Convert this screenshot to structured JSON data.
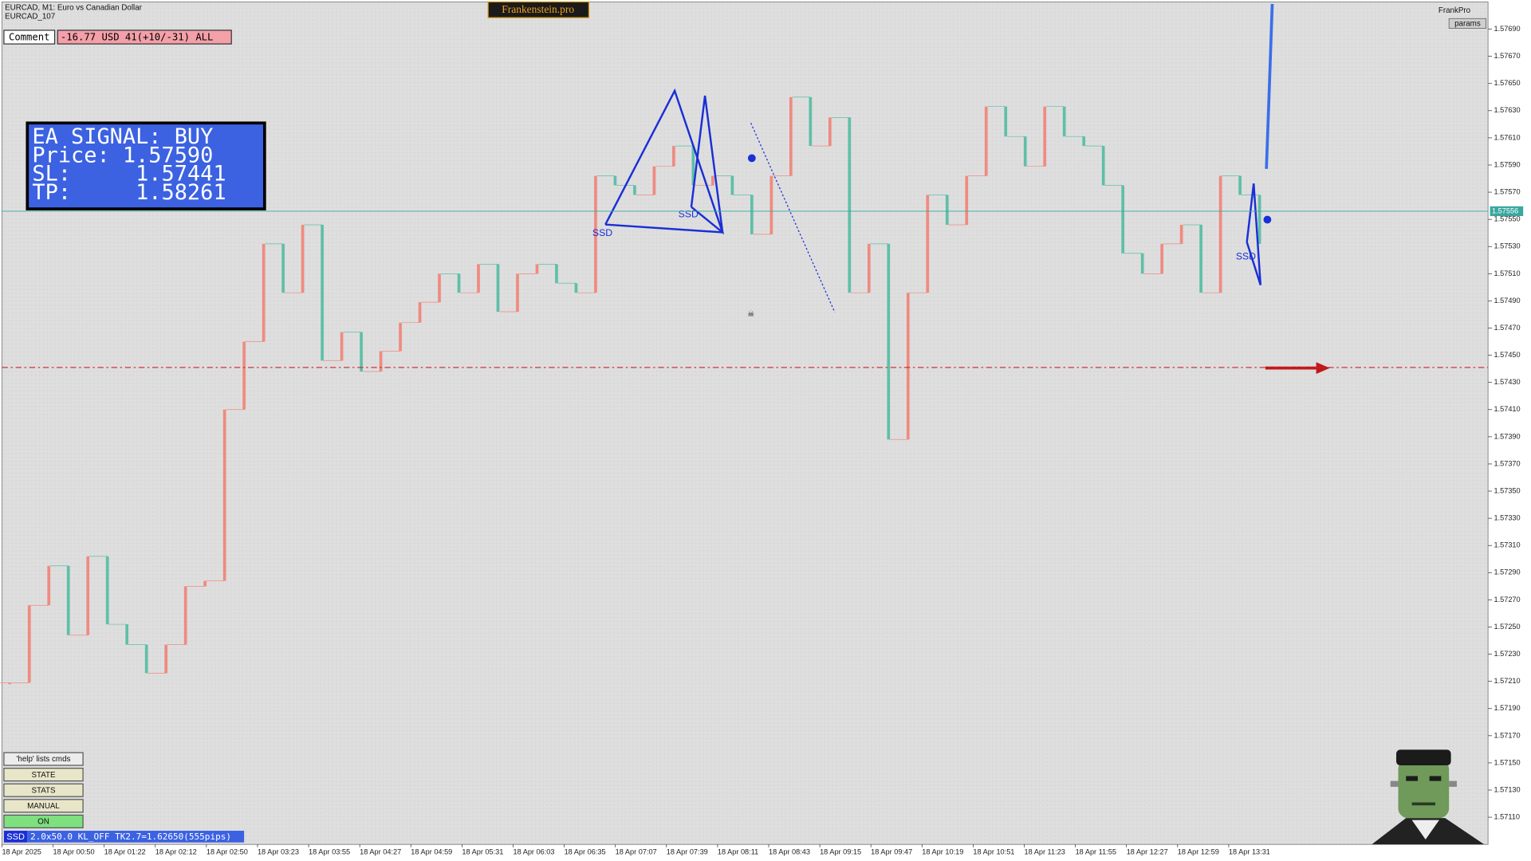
{
  "header": {
    "symbol_line": "EURCAD, M1:  Euro vs Canadian Dollar",
    "magic": "EURCAD_107",
    "brand": "Frankenstein.pro",
    "account": "FrankPro",
    "params": "params"
  },
  "comment": {
    "label": "Comment",
    "text": "-16.77 USD 41(+10/-31) ALL"
  },
  "signal_panel": {
    "lines": [
      "EA SIGNAL: BUY",
      "Price: 1.57590",
      "SL:     1.57441",
      "TP:     1.58261"
    ]
  },
  "buttons": [
    "'help' lists cmds",
    "STATE",
    "STATS",
    "MANUAL",
    "ON"
  ],
  "status": {
    "tag": "SSD",
    "text": "2.0x50.0 KL_OFF TK2.7=1.62650(555pips)"
  },
  "pattern_labels": [
    "SSD",
    "SSD",
    "SSD"
  ],
  "chart": {
    "ylim": [
      1.5709,
      1.5771
    ],
    "yticks": [
      {
        "value": 1.5711,
        "label": "1.57110"
      },
      {
        "value": 1.5713,
        "label": "1.57130"
      },
      {
        "value": 1.5715,
        "label": "1.57150"
      },
      {
        "value": 1.5717,
        "label": "1.57170"
      },
      {
        "value": 1.5719,
        "label": "1.57190"
      },
      {
        "value": 1.5721,
        "label": "1.57210"
      },
      {
        "value": 1.5723,
        "label": "1.57230"
      },
      {
        "value": 1.5725,
        "label": "1.57250"
      },
      {
        "value": 1.5727,
        "label": "1.57270"
      },
      {
        "value": 1.5729,
        "label": "1.57290"
      },
      {
        "value": 1.5731,
        "label": "1.57310"
      },
      {
        "value": 1.5733,
        "label": "1.57330"
      },
      {
        "value": 1.5735,
        "label": "1.57350"
      },
      {
        "value": 1.5737,
        "label": "1.57370"
      },
      {
        "value": 1.5739,
        "label": "1.57390"
      },
      {
        "value": 1.5741,
        "label": "1.57410"
      },
      {
        "value": 1.5743,
        "label": "1.57430"
      },
      {
        "value": 1.5745,
        "label": "1.57450"
      },
      {
        "value": 1.5747,
        "label": "1.57470"
      },
      {
        "value": 1.5749,
        "label": "1.57490"
      },
      {
        "value": 1.5751,
        "label": "1.57510"
      },
      {
        "value": 1.5753,
        "label": "1.57530"
      },
      {
        "value": 1.5755,
        "label": "1.57550"
      },
      {
        "value": 1.5757,
        "label": "1.57570"
      },
      {
        "value": 1.5759,
        "label": "1.57590"
      },
      {
        "value": 1.5761,
        "label": "1.57610"
      },
      {
        "value": 1.5763,
        "label": "1.57630"
      },
      {
        "value": 1.5765,
        "label": "1.57650"
      },
      {
        "value": 1.5767,
        "label": "1.57670"
      },
      {
        "value": 1.5769,
        "label": "1.57690"
      }
    ],
    "time_labels": [
      "18 Apr 2025",
      "18 Apr 00:50",
      "18 Apr 01:22",
      "18 Apr 02:12",
      "18 Apr 02:50",
      "18 Apr 03:23",
      "18 Apr 03:55",
      "18 Apr 04:27",
      "18 Apr 04:59",
      "18 Apr 05:31",
      "18 Apr 06:03",
      "18 Apr 06:35",
      "18 Apr 07:07",
      "18 Apr 07:39",
      "18 Apr 08:11",
      "18 Apr 08:43",
      "18 Apr 09:15",
      "18 Apr 09:47",
      "18 Apr 10:19",
      "18 Apr 10:51",
      "18 Apr 11:23",
      "18 Apr 11:55",
      "18 Apr 12:27",
      "18 Apr 12:59",
      "18 Apr 13:31"
    ],
    "closes": [
      1.57209,
      1.57266,
      1.57295,
      1.57244,
      1.57302,
      1.57252,
      1.57237,
      1.57216,
      1.57237,
      1.5728,
      1.57284,
      1.5741,
      1.5746,
      1.57532,
      1.57496,
      1.57546,
      1.57446,
      1.57467,
      1.57438,
      1.57453,
      1.57474,
      1.57489,
      1.5751,
      1.57496,
      1.57517,
      1.57482,
      1.5751,
      1.57517,
      1.57503,
      1.57496,
      1.57582,
      1.57575,
      1.57568,
      1.57589,
      1.57604,
      1.57575,
      1.57582,
      1.57568,
      1.57539,
      1.57582,
      1.5764,
      1.57604,
      1.57625,
      1.57496,
      1.57532,
      1.57388,
      1.57496,
      1.57568,
      1.57546,
      1.57582,
      1.57633,
      1.57611,
      1.57589,
      1.57633,
      1.57611,
      1.57604,
      1.57575,
      1.57525,
      1.5751,
      1.57532,
      1.57546,
      1.57496,
      1.57582,
      1.57568,
      1.57532
    ],
    "up_color": "#f08a80",
    "down_color": "#5fbfa8",
    "current_price": 1.57556,
    "stop_level": 1.57441
  }
}
